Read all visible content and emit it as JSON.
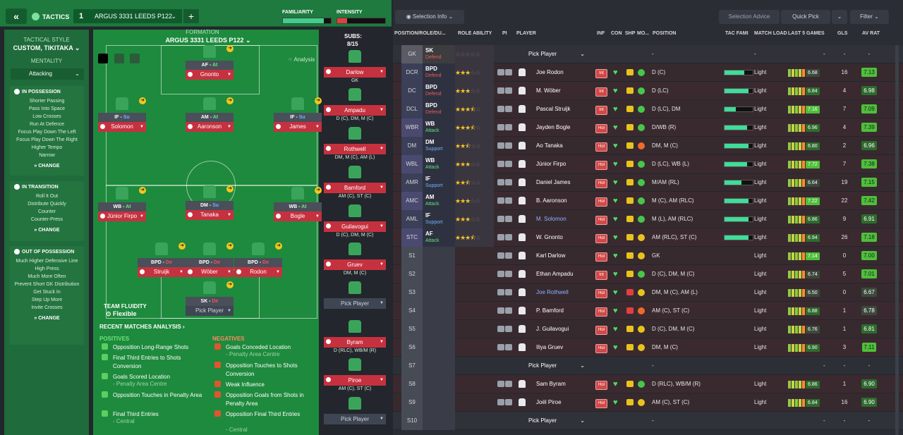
{
  "header": {
    "tactics_label": "TACTICS",
    "slot_number": "1",
    "tactic_name": "ARGUS 3331 LEEDS P122",
    "familiarity_label": "FAMILIARITY",
    "intensity_label": "INTENSITY",
    "familiarity_level": 0.85,
    "intensity_level": 0.2
  },
  "left_panel": {
    "tactical_style_label": "TACTICAL STYLE",
    "tactical_style": "CUSTOM, TIKITAKA",
    "mentality_label": "MENTALITY",
    "mentality": "Attacking",
    "in_possession": {
      "title": "IN POSSESSION",
      "items": [
        "Shorter Passing",
        "Pass Into Space",
        "Low Crosses",
        "Run At Defence",
        "Focus Play Down The Left",
        "Focus Play Down The Right",
        "Higher Tempo",
        "Narrow"
      ]
    },
    "in_transition": {
      "title": "IN TRANSITION",
      "items": [
        "Roll It Out",
        "Distribute Quickly",
        "Counter",
        "Counter-Press"
      ]
    },
    "out_of_possession": {
      "title": "OUT OF POSSESSION",
      "items": [
        "Much Higher Defensive Line",
        "High Press",
        "Much More Often",
        "Prevent Short GK Distribution",
        "Get Stuck In",
        "Step Up More",
        "Invite Crosses"
      ]
    },
    "change_label": "CHANGE"
  },
  "pitch": {
    "formation_label": "FORMATION",
    "formation_name": "ARGUS 3331 LEEDS P122",
    "analysis_label": "Analysis",
    "team_fluidity_label": "TEAM FLUIDITY",
    "team_fluidity": "Flexible",
    "players": [
      {
        "role": "AF",
        "duty": "At",
        "duty_class": "a",
        "name": "Gnonto"
      },
      {
        "role": "IF",
        "duty": "Su",
        "duty_class": "s",
        "name": "Solomon"
      },
      {
        "role": "AM",
        "duty": "At",
        "duty_class": "a",
        "name": "Aaronson"
      },
      {
        "role": "IF",
        "duty": "Su",
        "duty_class": "s",
        "name": "James"
      },
      {
        "role": "WB",
        "duty": "At",
        "duty_class": "a",
        "name": "Júnior Firpo"
      },
      {
        "role": "DM",
        "duty": "Su",
        "duty_class": "s",
        "name": "Tanaka"
      },
      {
        "role": "WB",
        "duty": "At",
        "duty_class": "a",
        "name": "Bogle"
      },
      {
        "role": "BPD",
        "duty": "De",
        "duty_class": "d",
        "name": "Struijk"
      },
      {
        "role": "BPD",
        "duty": "De",
        "duty_class": "d",
        "name": "Wöber"
      },
      {
        "role": "BPD",
        "duty": "De",
        "duty_class": "d",
        "name": "Rodon"
      },
      {
        "role": "SK",
        "duty": "De",
        "duty_class": "d",
        "name": "Pick Player"
      }
    ]
  },
  "subs": {
    "label": "SUBS:",
    "count": "8/15",
    "players": [
      {
        "name": "Darlow",
        "pos": "GK"
      },
      {
        "name": "Ampadu",
        "pos": "D (C), DM, M (C)"
      },
      {
        "name": "Rothwell",
        "pos": "DM, M (C), AM (L)"
      },
      {
        "name": "Bamford",
        "pos": "AM (C), ST (C)"
      },
      {
        "name": "Guilavogui",
        "pos": "D (C), DM, M (C)"
      },
      {
        "name": "Gruev",
        "pos": "DM, M (C)"
      },
      {
        "name": "Pick Player",
        "pos": ""
      },
      {
        "name": "Byram",
        "pos": "D (RLC), WB/M (R)"
      },
      {
        "name": "Piroe",
        "pos": "AM (C), ST (C)"
      },
      {
        "name": "Pick Player",
        "pos": ""
      }
    ]
  },
  "analysis": {
    "title": "RECENT MATCHES ANALYSIS",
    "positives_label": "POSITIVES",
    "positives": [
      {
        "text": "Opposition Long-Range Shots",
        "sub": ""
      },
      {
        "text": "Final Third Entries to Shots Conversion",
        "sub": ""
      },
      {
        "text": "Goals Scored Location",
        "sub": "- Penalty Area Centre"
      },
      {
        "text": "Opposition Touches in Penalty Area",
        "sub": ""
      },
      {
        "text": "Final Third Entries",
        "sub": "- Central"
      }
    ],
    "negatives_label": "NEGATIVES",
    "negatives": [
      {
        "text": "Goals Conceded Location",
        "sub": "- Penalty Area Centre"
      },
      {
        "text": "Opposition Touches to Shots Conversion",
        "sub": ""
      },
      {
        "text": "Weak Influence",
        "sub": ""
      },
      {
        "text": "Opposition Goals from Shots in Penalty Area",
        "sub": ""
      },
      {
        "text": "Opposition Final Third Entries",
        "sub": "- Central"
      }
    ]
  },
  "right_panel": {
    "selection_info": "Selection Info",
    "selection_advice": "Selection Advice",
    "quick_pick": "Quick Pick",
    "filter": "Filter",
    "columns": [
      "POSITION/ROLE/DU...",
      "ROLE ABILITY",
      "PI",
      "PLAYER",
      "INF",
      "CON",
      "SHP",
      "MO...",
      "POSITION",
      "TAC FAMI",
      "MATCH LOAD",
      "LAST 5 GAMES",
      "GLS",
      "AV RAT"
    ],
    "rows": [
      {
        "pos": "GK",
        "role": "SK",
        "duty": "Defend",
        "dc": "d",
        "stars": 0,
        "player": "Pick Player",
        "inf": "",
        "posn": "-",
        "fam": null,
        "load": "-",
        "last5": "-",
        "gls": "-",
        "avr": "-"
      },
      {
        "pos": "DCR",
        "role": "BPD",
        "duty": "Defend",
        "dc": "d",
        "stars": 3,
        "player": "Joe Rodon",
        "inf": "Int",
        "posn": "D (C)",
        "fam": 0.7,
        "load": "Light",
        "last5": "6.68",
        "gls": "16",
        "avr": "7.13"
      },
      {
        "pos": "DC",
        "role": "BPD",
        "duty": "Defend",
        "dc": "d",
        "stars": 3,
        "player": "M. Wöber",
        "inf": "Int",
        "posn": "D (LC)",
        "fam": 0.85,
        "load": "Light",
        "last5": "6.84",
        "gls": "4",
        "avr": "6.98"
      },
      {
        "pos": "DCL",
        "role": "BPD",
        "duty": "Defend",
        "dc": "d",
        "stars": 3.5,
        "player": "Pascal Struijk",
        "inf": "Int",
        "posn": "D (LC), DM",
        "fam": 0.4,
        "load": "Light",
        "last5": "7.16",
        "gls": "7",
        "avr": "7.09"
      },
      {
        "pos": "WBR",
        "role": "WB",
        "duty": "Attack",
        "dc": "a",
        "stars": 3.5,
        "player": "Jayden Bogle",
        "inf": "Hol",
        "posn": "D/WB (R)",
        "fam": 0.8,
        "load": "Light",
        "last5": "6.96",
        "gls": "4",
        "avr": "7.39"
      },
      {
        "pos": "DM",
        "role": "DM",
        "duty": "Support",
        "dc": "s",
        "stars": 2.5,
        "player": "Ao Tanaka",
        "inf": "Hol",
        "posn": "DM, M (C)",
        "fam": 0.85,
        "load": "Light",
        "last5": "6.80",
        "gls": "2",
        "avr": "6.96"
      },
      {
        "pos": "WBL",
        "role": "WB",
        "duty": "Attack",
        "dc": "a",
        "stars": 3,
        "player": "Júnior Firpo",
        "inf": "Hol",
        "posn": "D (LC), WB (L)",
        "fam": 0.8,
        "load": "Light",
        "last5": "7.72",
        "gls": "7",
        "avr": "7.38"
      },
      {
        "pos": "AMR",
        "role": "IF",
        "duty": "Support",
        "dc": "s",
        "stars": 2.5,
        "player": "Daniel James",
        "inf": "Hol",
        "posn": "M/AM (RL)",
        "fam": 0.6,
        "load": "Light",
        "last5": "6.64",
        "gls": "19",
        "avr": "7.15"
      },
      {
        "pos": "AMC",
        "role": "AM",
        "duty": "Attack",
        "dc": "a",
        "stars": 3,
        "player": "B. Aaronson",
        "inf": "Hol",
        "posn": "M (C), AM (RLC)",
        "fam": 0.85,
        "load": "Light",
        "last5": "7.22",
        "gls": "22",
        "avr": "7.42"
      },
      {
        "pos": "AML",
        "role": "IF",
        "duty": "Support",
        "dc": "s",
        "stars": 3,
        "player": "M. Solomon",
        "inf": "Hol",
        "posn": "M (L), AM (RLC)",
        "fam": 0.85,
        "load": "Light",
        "last5": "6.86",
        "gls": "9",
        "avr": "6.91"
      },
      {
        "pos": "STC",
        "role": "AF",
        "duty": "Attack",
        "dc": "a",
        "stars": 3.5,
        "player": "W. Gnonto",
        "inf": "Hol",
        "posn": "AM (RLC), ST (C)",
        "fam": 0.85,
        "load": "Light",
        "last5": "6.94",
        "gls": "26",
        "avr": "7.18"
      },
      {
        "pos": "S1",
        "role": "",
        "duty": "",
        "dc": "",
        "stars": null,
        "player": "Karl Darlow",
        "inf": "Hol",
        "posn": "GK",
        "fam": null,
        "load": "Light",
        "last5": "7.14",
        "gls": "0",
        "avr": "7.00"
      },
      {
        "pos": "S2",
        "role": "",
        "duty": "",
        "dc": "",
        "stars": null,
        "player": "Ethan Ampadu",
        "inf": "Int",
        "posn": "D (C), DM, M (C)",
        "fam": null,
        "load": "Light",
        "last5": "6.74",
        "gls": "5",
        "avr": "7.01"
      },
      {
        "pos": "S3",
        "role": "",
        "duty": "",
        "dc": "",
        "stars": null,
        "player": "Joe Rothwell",
        "inf": "Hol",
        "posn": "DM, M (C), AM (L)",
        "fam": null,
        "load": "Light",
        "last5": "6.50",
        "gls": "0",
        "avr": "6.67"
      },
      {
        "pos": "S4",
        "role": "",
        "duty": "",
        "dc": "",
        "stars": null,
        "player": "P. Bamford",
        "inf": "Hol",
        "posn": "AM (C), ST (C)",
        "fam": null,
        "load": "Light",
        "last5": "6.88",
        "gls": "1",
        "avr": "6.78"
      },
      {
        "pos": "S5",
        "role": "",
        "duty": "",
        "dc": "",
        "stars": null,
        "player": "J. Guilavogui",
        "inf": "Hol",
        "posn": "D (C), DM, M (C)",
        "fam": null,
        "load": "Light",
        "last5": "6.76",
        "gls": "1",
        "avr": "6.81"
      },
      {
        "pos": "S6",
        "role": "",
        "duty": "",
        "dc": "",
        "stars": null,
        "player": "Iliya Gruev",
        "inf": "Hol",
        "posn": "DM, M (C)",
        "fam": null,
        "load": "Light",
        "last5": "6.90",
        "gls": "3",
        "avr": "7.11"
      },
      {
        "pos": "S7",
        "role": "",
        "duty": "",
        "dc": "",
        "stars": null,
        "player": "Pick Player",
        "inf": "",
        "posn": "-",
        "fam": null,
        "load": "",
        "last5": "-",
        "gls": "-",
        "avr": "-"
      },
      {
        "pos": "S8",
        "role": "",
        "duty": "",
        "dc": "",
        "stars": null,
        "player": "Sam Byram",
        "inf": "Hol",
        "posn": "D (RLC), WB/M (R)",
        "fam": null,
        "load": "Light",
        "last5": "6.86",
        "gls": "1",
        "avr": "6.90"
      },
      {
        "pos": "S9",
        "role": "",
        "duty": "",
        "dc": "",
        "stars": null,
        "player": "Joël Piroe",
        "inf": "Hol",
        "posn": "AM (C), ST (C)",
        "fam": null,
        "load": "Light",
        "last5": "6.84",
        "gls": "16",
        "avr": "6.90"
      },
      {
        "pos": "S10",
        "role": "",
        "duty": "",
        "dc": "",
        "stars": null,
        "player": "Pick Player",
        "inf": "",
        "posn": "-",
        "fam": null,
        "load": "",
        "last5": "-",
        "gls": "-",
        "avr": "-"
      }
    ]
  }
}
